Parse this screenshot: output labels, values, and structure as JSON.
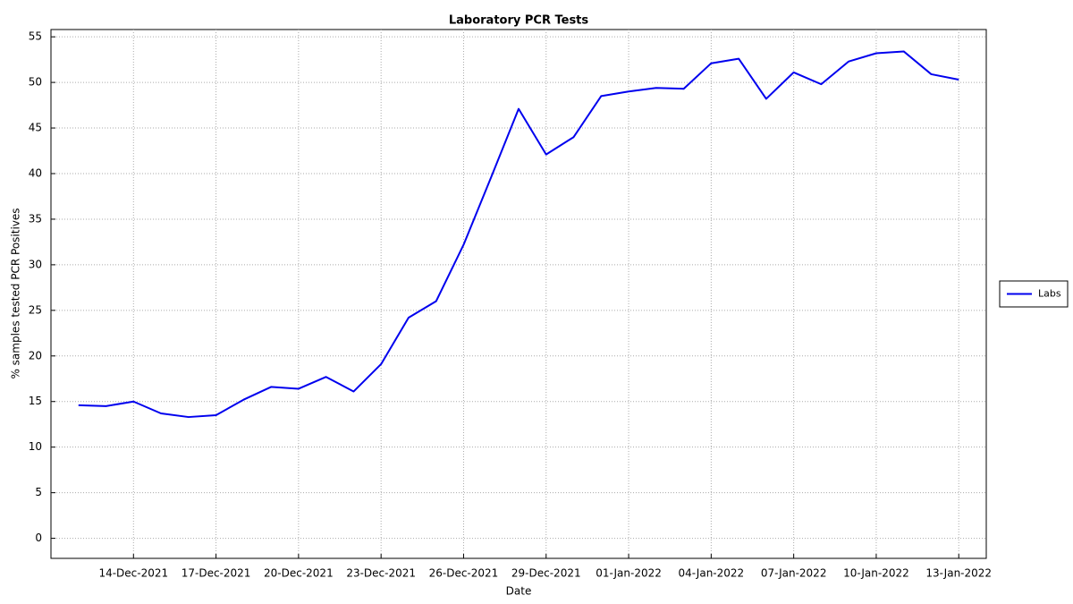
{
  "chart_data": {
    "type": "line",
    "title": "Laboratory PCR Tests",
    "x_label": "Date",
    "y_label": "% samples tested PCR Positives",
    "x": [
      "2021-12-12",
      "2021-12-13",
      "2021-12-14",
      "2021-12-15",
      "2021-12-16",
      "2021-12-17",
      "2021-12-18",
      "2021-12-19",
      "2021-12-20",
      "2021-12-21",
      "2021-12-22",
      "2021-12-23",
      "2021-12-24",
      "2021-12-25",
      "2021-12-26",
      "2021-12-27",
      "2021-12-28",
      "2021-12-29",
      "2021-12-30",
      "2021-12-31",
      "2022-01-01",
      "2022-01-02",
      "2022-01-03",
      "2022-01-04",
      "2022-01-05",
      "2022-01-06",
      "2022-01-07",
      "2022-01-08",
      "2022-01-09",
      "2022-01-10",
      "2022-01-11",
      "2022-01-12",
      "2022-01-13"
    ],
    "series": [
      {
        "name": "Labs",
        "color": "#0000ee",
        "values": [
          14.6,
          14.5,
          15.0,
          13.7,
          13.3,
          13.5,
          15.2,
          16.6,
          16.4,
          17.7,
          16.1,
          19.1,
          24.2,
          26.0,
          32.2,
          39.6,
          47.1,
          42.1,
          44.0,
          48.5,
          49.0,
          49.4,
          49.3,
          52.1,
          52.6,
          48.2,
          51.1,
          49.8,
          52.3,
          53.2,
          53.4,
          50.9,
          50.3
        ]
      }
    ],
    "xlim": [
      "2021-12-11",
      "2022-01-14"
    ],
    "xticks": [
      {
        "value": "2021-12-14",
        "label": "14-Dec-2021"
      },
      {
        "value": "2021-12-17",
        "label": "17-Dec-2021"
      },
      {
        "value": "2021-12-20",
        "label": "20-Dec-2021"
      },
      {
        "value": "2021-12-23",
        "label": "23-Dec-2021"
      },
      {
        "value": "2021-12-26",
        "label": "26-Dec-2021"
      },
      {
        "value": "2021-12-29",
        "label": "29-Dec-2021"
      },
      {
        "value": "2022-01-01",
        "label": "01-Jan-2022"
      },
      {
        "value": "2022-01-04",
        "label": "04-Jan-2022"
      },
      {
        "value": "2022-01-07",
        "label": "07-Jan-2022"
      },
      {
        "value": "2022-01-10",
        "label": "10-Jan-2022"
      },
      {
        "value": "2022-01-13",
        "label": "13-Jan-2022"
      }
    ],
    "ylim": [
      -2.2,
      55.8
    ],
    "yticks": [
      0,
      5,
      10,
      15,
      20,
      25,
      30,
      35,
      40,
      45,
      50,
      55
    ],
    "grid": true,
    "legend": "right"
  }
}
